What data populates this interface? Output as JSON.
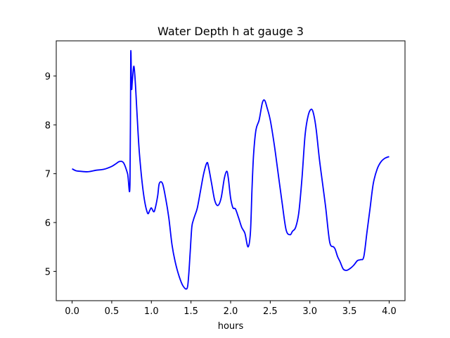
{
  "chart_data": {
    "type": "line",
    "title": "Water Depth h at gauge 3",
    "xlabel": "hours",
    "ylabel": "",
    "xlim": [
      -0.2,
      4.2
    ],
    "ylim": [
      4.4,
      9.72
    ],
    "xticks": [
      0.0,
      0.5,
      1.0,
      1.5,
      2.0,
      2.5,
      3.0,
      3.5,
      4.0
    ],
    "xtick_labels": [
      "0.0",
      "0.5",
      "1.0",
      "1.5",
      "2.0",
      "2.5",
      "3.0",
      "3.5",
      "4.0"
    ],
    "yticks": [
      5,
      6,
      7,
      8,
      9
    ],
    "ytick_labels": [
      "5",
      "6",
      "7",
      "8",
      "9"
    ],
    "grid": false,
    "series": [
      {
        "color": "#0000ff",
        "x": [
          0.0,
          0.05,
          0.1,
          0.2,
          0.3,
          0.4,
          0.5,
          0.55,
          0.6,
          0.65,
          0.7,
          0.73,
          0.74,
          0.75,
          0.76,
          0.78,
          0.8,
          0.82,
          0.85,
          0.9,
          0.95,
          0.98,
          1.0,
          1.03,
          1.05,
          1.08,
          1.1,
          1.14,
          1.18,
          1.22,
          1.26,
          1.3,
          1.35,
          1.4,
          1.45,
          1.47,
          1.49,
          1.51,
          1.53,
          1.55,
          1.58,
          1.62,
          1.66,
          1.7,
          1.72,
          1.76,
          1.8,
          1.84,
          1.88,
          1.92,
          1.95,
          1.97,
          2.0,
          2.03,
          2.06,
          2.1,
          2.14,
          2.18,
          2.22,
          2.25,
          2.27,
          2.29,
          2.32,
          2.36,
          2.4,
          2.43,
          2.46,
          2.5,
          2.55,
          2.6,
          2.65,
          2.7,
          2.75,
          2.78,
          2.82,
          2.86,
          2.9,
          2.94,
          2.98,
          3.02,
          3.05,
          3.08,
          3.12,
          3.16,
          3.2,
          3.25,
          3.3,
          3.32,
          3.35,
          3.38,
          3.42,
          3.46,
          3.5,
          3.55,
          3.6,
          3.64,
          3.68,
          3.72,
          3.76,
          3.8,
          3.85,
          3.9,
          3.95,
          4.0
        ],
        "y": [
          7.1,
          7.06,
          7.05,
          7.04,
          7.07,
          7.09,
          7.15,
          7.2,
          7.25,
          7.22,
          7.0,
          6.78,
          9.45,
          8.75,
          8.9,
          9.2,
          8.8,
          8.2,
          7.4,
          6.6,
          6.2,
          6.25,
          6.3,
          6.22,
          6.3,
          6.55,
          6.8,
          6.8,
          6.5,
          6.1,
          5.55,
          5.2,
          4.9,
          4.7,
          4.65,
          4.9,
          5.4,
          5.9,
          6.05,
          6.15,
          6.3,
          6.65,
          7.0,
          7.22,
          7.15,
          6.8,
          6.45,
          6.35,
          6.5,
          6.9,
          7.05,
          6.92,
          6.5,
          6.3,
          6.28,
          6.1,
          5.9,
          5.78,
          5.5,
          5.8,
          6.7,
          7.4,
          7.9,
          8.1,
          8.45,
          8.5,
          8.35,
          8.1,
          7.6,
          7.0,
          6.4,
          5.85,
          5.75,
          5.82,
          5.9,
          6.2,
          6.9,
          7.8,
          8.2,
          8.32,
          8.2,
          7.9,
          7.3,
          6.8,
          6.3,
          5.6,
          5.5,
          5.45,
          5.3,
          5.2,
          5.05,
          5.02,
          5.05,
          5.12,
          5.22,
          5.24,
          5.3,
          5.8,
          6.3,
          6.8,
          7.1,
          7.25,
          7.32,
          7.35
        ]
      }
    ]
  }
}
